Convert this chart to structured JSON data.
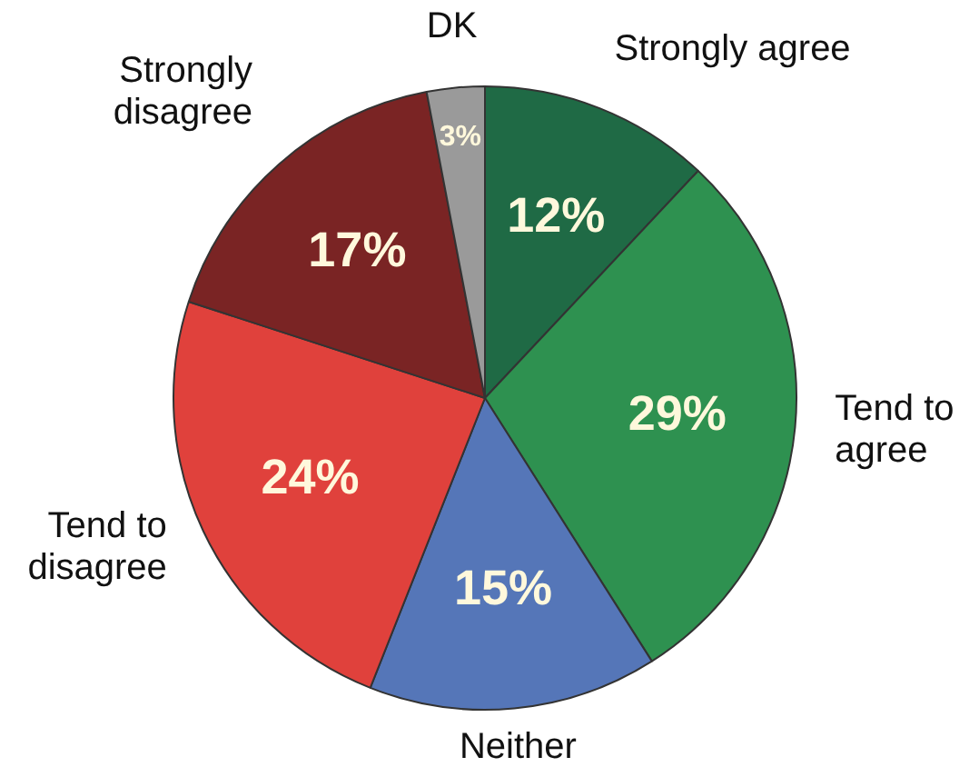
{
  "chart_data": {
    "type": "pie",
    "categories": [
      "Strongly agree",
      "Tend to agree",
      "Neither",
      "Tend to disagree",
      "Strongly disagree",
      "DK"
    ],
    "values": [
      12,
      29,
      15,
      24,
      17,
      3
    ],
    "colors": [
      "#1f6a45",
      "#2e9150",
      "#5576b8",
      "#e0413c",
      "#7a2424",
      "#9a9a9a"
    ],
    "value_labels": [
      "12%",
      "29%",
      "15%",
      "24%",
      "17%",
      "3%"
    ],
    "legend": false
  }
}
